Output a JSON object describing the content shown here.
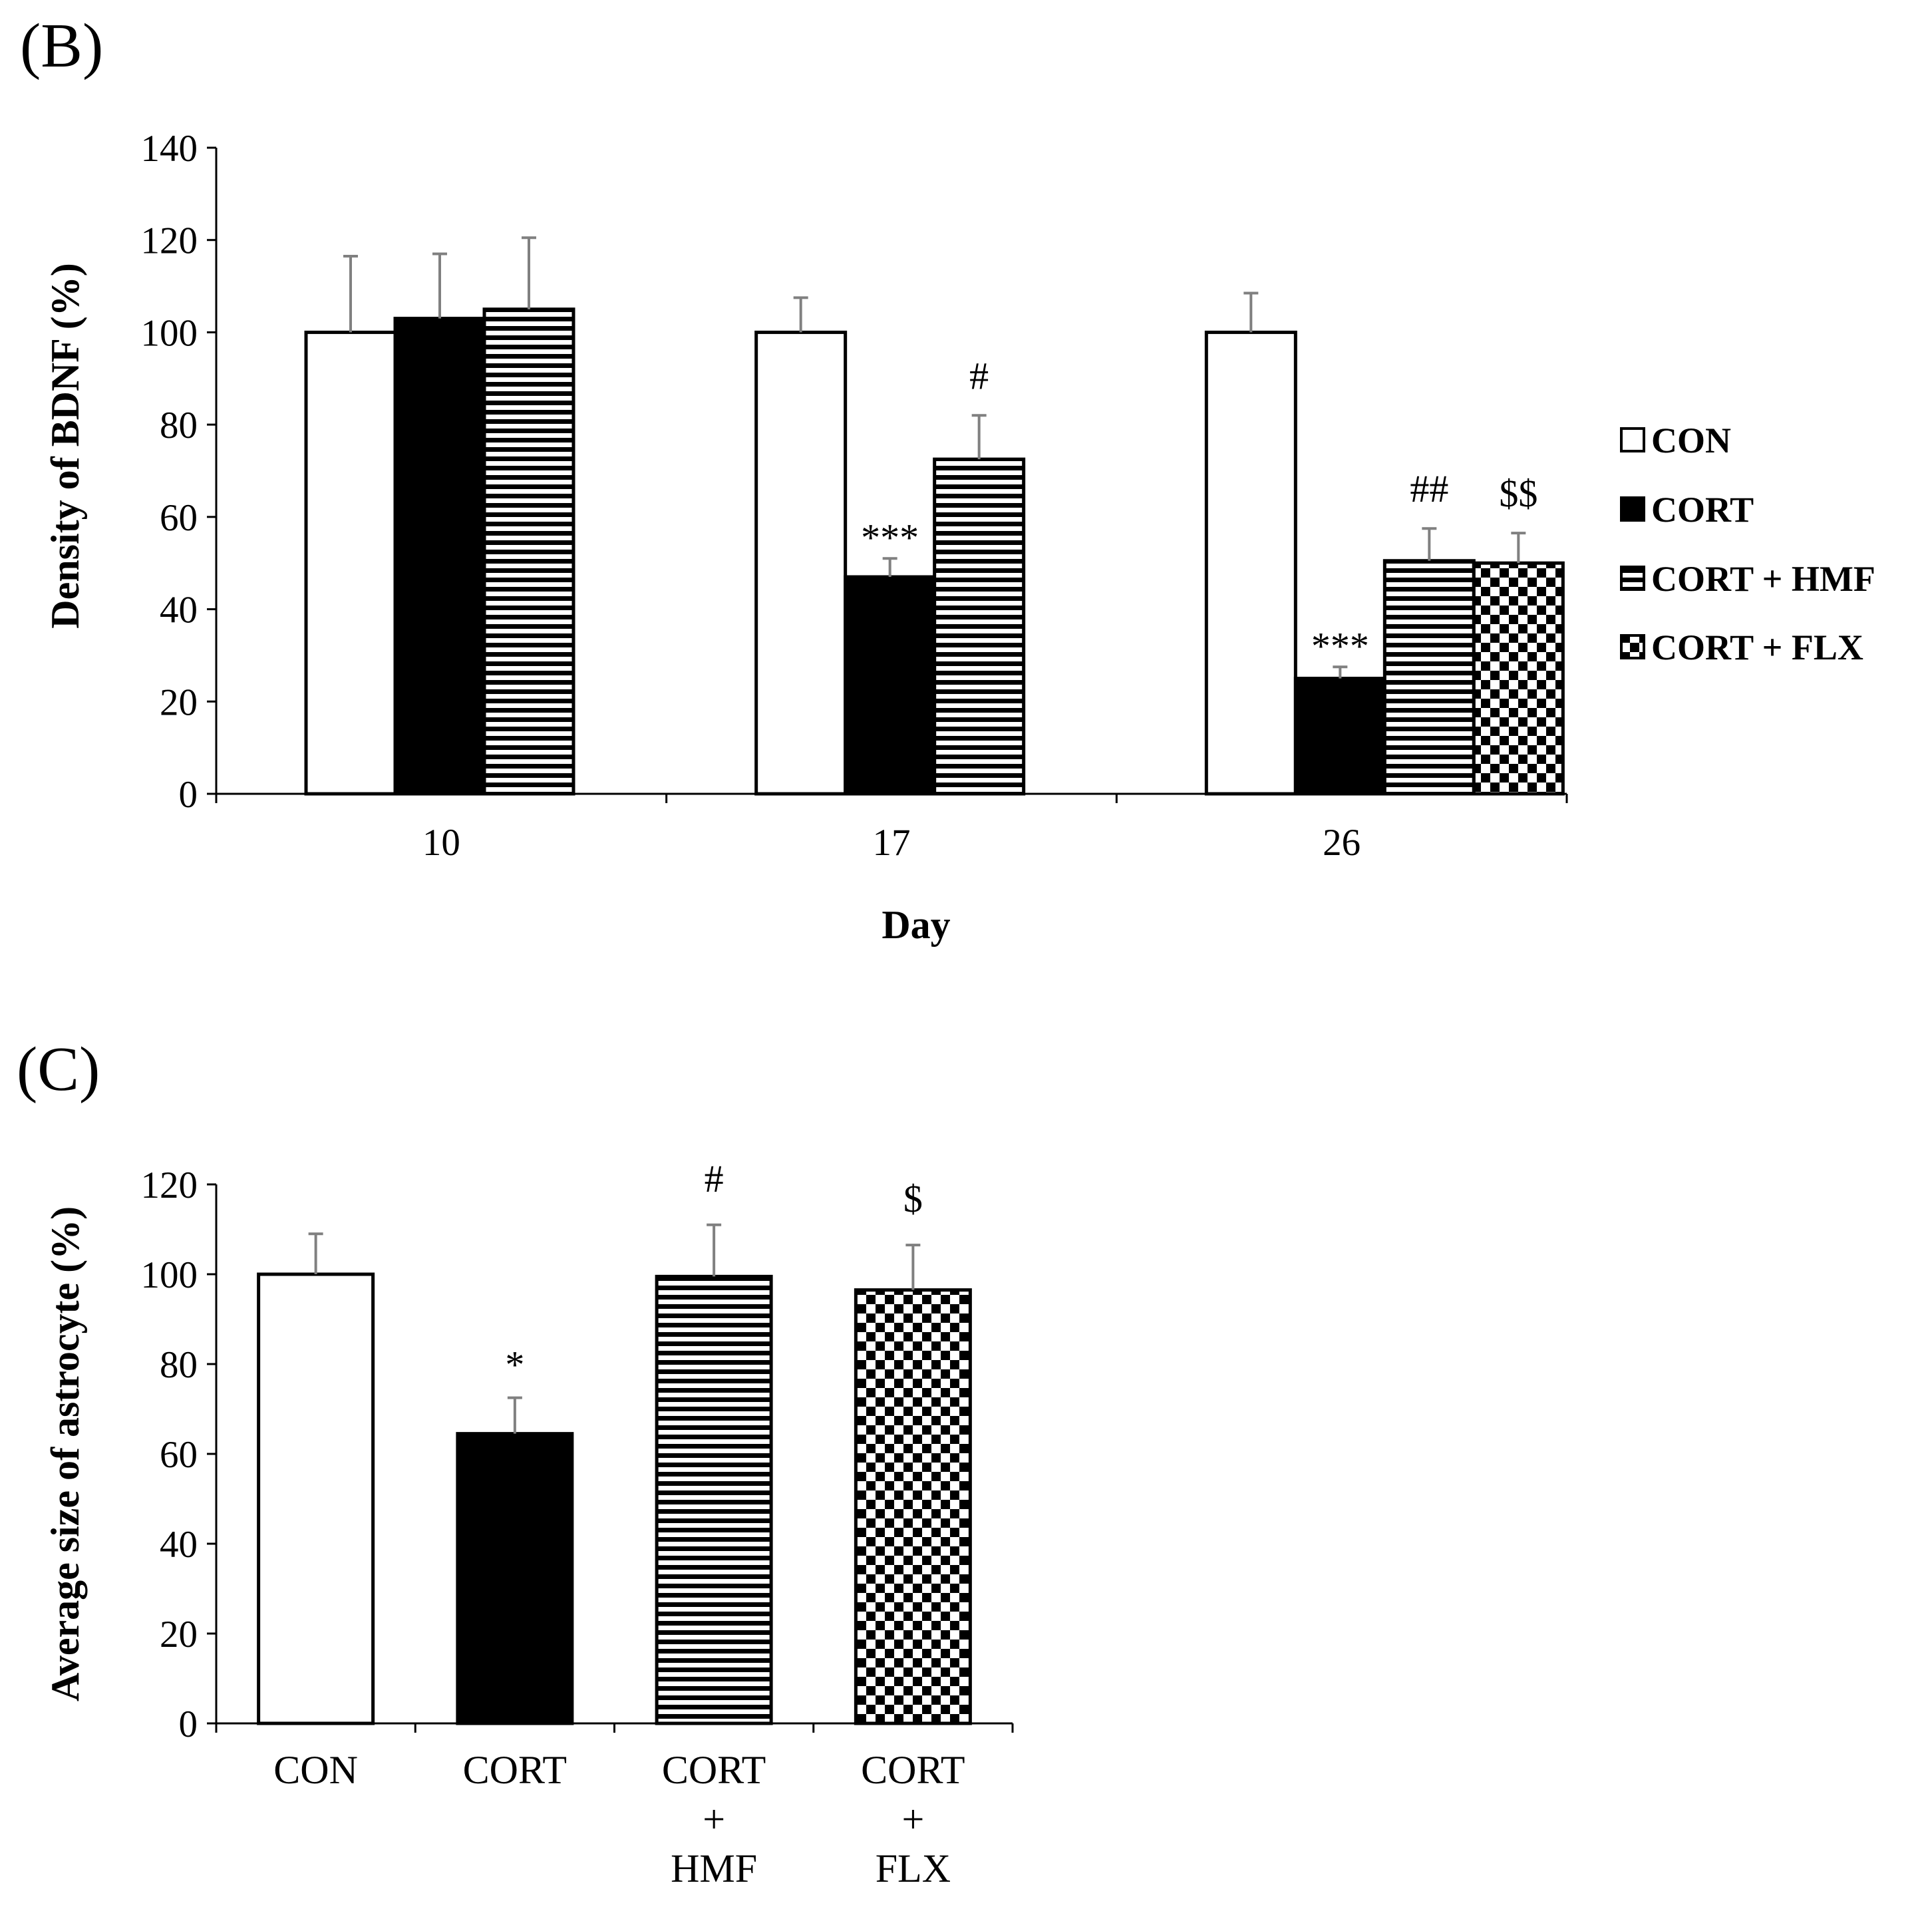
{
  "legend": {
    "items": [
      {
        "label": "CON",
        "pattern": "white"
      },
      {
        "label": "CORT",
        "pattern": "black"
      },
      {
        "label": "CORT + HMF",
        "pattern": "hstripes"
      },
      {
        "label": "CORT + FLX",
        "pattern": "checker"
      }
    ]
  },
  "colors": {
    "bar_fill": "#ffffff",
    "bar_dark": "#000000",
    "error_bar": "#808080"
  },
  "chart_data": [
    {
      "panel": "(B)",
      "type": "bar",
      "xlabel": "Day",
      "ylabel": "Density of BDNF (%)",
      "ylim": [
        0,
        140
      ],
      "yticks": [
        0,
        20,
        40,
        60,
        80,
        100,
        120,
        140
      ],
      "categories": [
        "10",
        "17",
        "26"
      ],
      "series": [
        {
          "name": "CON",
          "pattern": "white",
          "values": [
            100,
            100,
            100
          ],
          "errors": [
            16.5,
            7.5,
            8.5
          ],
          "sig": [
            "",
            "",
            ""
          ]
        },
        {
          "name": "CORT",
          "pattern": "black",
          "values": [
            103,
            47,
            25
          ],
          "errors": [
            14,
            4,
            2.5
          ],
          "sig": [
            "",
            "***",
            "***"
          ]
        },
        {
          "name": "CORT + HMF",
          "pattern": "hstripes",
          "values": [
            105,
            72.5,
            50.5
          ],
          "errors": [
            15.5,
            9.5,
            7
          ],
          "sig": [
            "",
            "#",
            "##"
          ]
        },
        {
          "name": "CORT + FLX",
          "pattern": "checker",
          "values": [
            null,
            null,
            50
          ],
          "errors": [
            null,
            null,
            6.5
          ],
          "sig": [
            "",
            "",
            "$$"
          ]
        }
      ]
    },
    {
      "panel": "(C)",
      "type": "bar",
      "xlabel": "",
      "ylabel": "Average size of astrocyte (%)",
      "ylim": [
        0,
        120
      ],
      "yticks": [
        0,
        20,
        40,
        60,
        80,
        100,
        120
      ],
      "categories": [
        [
          "CON"
        ],
        [
          "CORT"
        ],
        [
          "CORT",
          "+",
          "HMF"
        ],
        [
          "CORT",
          "+",
          "FLX"
        ]
      ],
      "values": [
        100,
        64.5,
        99.5,
        96.5
      ],
      "errors": [
        9,
        8,
        11.5,
        10
      ],
      "patterns": [
        "white",
        "black",
        "hstripes",
        "checker"
      ],
      "sig": [
        "",
        "*",
        "#",
        "$"
      ]
    }
  ]
}
